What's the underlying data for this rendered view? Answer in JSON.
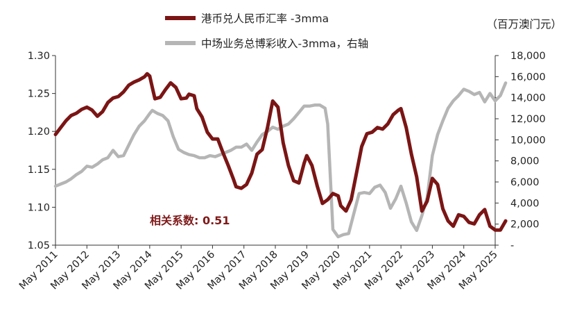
{
  "chart_data": {
    "type": "line",
    "title": "",
    "x_tick_labels": [
      "May 2011",
      "May 2012",
      "May 2013",
      "May 2014",
      "May 2015",
      "May 2016",
      "May 2017",
      "May 2018",
      "May 2019",
      "May 2020",
      "May 2021",
      "May 2022",
      "May 2023",
      "May 2024",
      "May 2025"
    ],
    "y_left": {
      "ylim": [
        1.05,
        1.3
      ],
      "ticks": [
        "1.05",
        "1.10",
        "1.15",
        "1.20",
        "1.25",
        "1.30"
      ]
    },
    "y_right": {
      "ylim": [
        0,
        18000
      ],
      "ticks": [
        "-",
        "2,000",
        "4,000",
        "6,000",
        "8,000",
        "10,000",
        "12,000",
        "14,000",
        "16,000",
        "18,000"
      ],
      "unit_label": "（百万澳门元）"
    },
    "annotation": "相关系数: 0.51",
    "legend_position": "top",
    "series": [
      {
        "name": "港币兑人民币汇率 -3mma",
        "axis": "left",
        "color": "#7b1515",
        "points": [
          [
            "2011-05",
            1.196
          ],
          [
            "2011-07",
            1.205
          ],
          [
            "2011-09",
            1.214
          ],
          [
            "2011-11",
            1.221
          ],
          [
            "2012-01",
            1.224
          ],
          [
            "2012-03",
            1.229
          ],
          [
            "2012-05",
            1.232
          ],
          [
            "2012-07",
            1.228
          ],
          [
            "2012-09",
            1.22
          ],
          [
            "2012-11",
            1.226
          ],
          [
            "2013-01",
            1.238
          ],
          [
            "2013-03",
            1.244
          ],
          [
            "2013-05",
            1.246
          ],
          [
            "2013-07",
            1.252
          ],
          [
            "2013-09",
            1.261
          ],
          [
            "2013-11",
            1.265
          ],
          [
            "2014-01",
            1.268
          ],
          [
            "2014-03",
            1.272
          ],
          [
            "2014-04",
            1.276
          ],
          [
            "2014-05",
            1.273
          ],
          [
            "2014-06",
            1.258
          ],
          [
            "2014-07",
            1.243
          ],
          [
            "2014-09",
            1.245
          ],
          [
            "2014-11",
            1.255
          ],
          [
            "2015-01",
            1.264
          ],
          [
            "2015-03",
            1.258
          ],
          [
            "2015-05",
            1.243
          ],
          [
            "2015-07",
            1.244
          ],
          [
            "2015-08",
            1.249
          ],
          [
            "2015-10",
            1.247
          ],
          [
            "2015-11",
            1.23
          ],
          [
            "2016-01",
            1.219
          ],
          [
            "2016-03",
            1.199
          ],
          [
            "2016-05",
            1.19
          ],
          [
            "2016-07",
            1.19
          ],
          [
            "2016-09",
            1.172
          ],
          [
            "2016-11",
            1.155
          ],
          [
            "2017-01",
            1.137
          ],
          [
            "2017-02",
            1.127
          ],
          [
            "2017-04",
            1.125
          ],
          [
            "2017-06",
            1.13
          ],
          [
            "2017-08",
            1.145
          ],
          [
            "2017-10",
            1.17
          ],
          [
            "2017-12",
            1.176
          ],
          [
            "2018-02",
            1.205
          ],
          [
            "2018-04",
            1.24
          ],
          [
            "2018-06",
            1.232
          ],
          [
            "2018-08",
            1.185
          ],
          [
            "2018-10",
            1.155
          ],
          [
            "2018-12",
            1.135
          ],
          [
            "2019-02",
            1.132
          ],
          [
            "2019-04",
            1.158
          ],
          [
            "2019-05",
            1.168
          ],
          [
            "2019-07",
            1.155
          ],
          [
            "2019-09",
            1.128
          ],
          [
            "2019-11",
            1.105
          ],
          [
            "2020-01",
            1.11
          ],
          [
            "2020-03",
            1.118
          ],
          [
            "2020-05",
            1.115
          ],
          [
            "2020-06",
            1.102
          ],
          [
            "2020-08",
            1.095
          ],
          [
            "2020-10",
            1.11
          ],
          [
            "2020-12",
            1.145
          ],
          [
            "2021-02",
            1.18
          ],
          [
            "2021-04",
            1.197
          ],
          [
            "2021-06",
            1.199
          ],
          [
            "2021-08",
            1.205
          ],
          [
            "2021-10",
            1.203
          ],
          [
            "2021-12",
            1.21
          ],
          [
            "2022-02",
            1.222
          ],
          [
            "2022-04",
            1.228
          ],
          [
            "2022-05",
            1.23
          ],
          [
            "2022-07",
            1.205
          ],
          [
            "2022-09",
            1.17
          ],
          [
            "2022-11",
            1.14
          ],
          [
            "2023-01",
            1.095
          ],
          [
            "2023-03",
            1.108
          ],
          [
            "2023-05",
            1.138
          ],
          [
            "2023-07",
            1.13
          ],
          [
            "2023-09",
            1.098
          ],
          [
            "2023-11",
            1.082
          ],
          [
            "2024-01",
            1.075
          ],
          [
            "2024-03",
            1.09
          ],
          [
            "2024-05",
            1.088
          ],
          [
            "2024-07",
            1.08
          ],
          [
            "2024-09",
            1.078
          ],
          [
            "2024-11",
            1.09
          ],
          [
            "2025-01",
            1.097
          ],
          [
            "2025-03",
            1.075
          ],
          [
            "2025-05",
            1.07
          ],
          [
            "2025-07",
            1.07
          ],
          [
            "2025-09",
            1.082
          ]
        ]
      },
      {
        "name": "中场业务总博彩收入-3mma，右轴",
        "axis": "right",
        "color": "#b5b5b5",
        "points": [
          [
            "2011-05",
            5600
          ],
          [
            "2011-07",
            5800
          ],
          [
            "2011-09",
            6000
          ],
          [
            "2011-11",
            6300
          ],
          [
            "2012-01",
            6700
          ],
          [
            "2012-03",
            7000
          ],
          [
            "2012-05",
            7500
          ],
          [
            "2012-07",
            7400
          ],
          [
            "2012-09",
            7700
          ],
          [
            "2012-11",
            8100
          ],
          [
            "2013-01",
            8300
          ],
          [
            "2013-03",
            9000
          ],
          [
            "2013-05",
            8400
          ],
          [
            "2013-07",
            8500
          ],
          [
            "2013-09",
            9500
          ],
          [
            "2013-11",
            10500
          ],
          [
            "2014-01",
            11300
          ],
          [
            "2014-03",
            11800
          ],
          [
            "2014-05",
            12500
          ],
          [
            "2014-06",
            12800
          ],
          [
            "2014-08",
            12500
          ],
          [
            "2014-10",
            12300
          ],
          [
            "2014-12",
            11800
          ],
          [
            "2015-02",
            10300
          ],
          [
            "2015-04",
            9100
          ],
          [
            "2015-06",
            8800
          ],
          [
            "2015-08",
            8600
          ],
          [
            "2015-10",
            8500
          ],
          [
            "2015-12",
            8300
          ],
          [
            "2016-02",
            8300
          ],
          [
            "2016-04",
            8500
          ],
          [
            "2016-06",
            8400
          ],
          [
            "2016-08",
            8600
          ],
          [
            "2016-10",
            8800
          ],
          [
            "2016-12",
            9000
          ],
          [
            "2017-02",
            9300
          ],
          [
            "2017-04",
            9300
          ],
          [
            "2017-06",
            9600
          ],
          [
            "2017-08",
            9000
          ],
          [
            "2017-10",
            9800
          ],
          [
            "2017-12",
            10500
          ],
          [
            "2018-02",
            10800
          ],
          [
            "2018-04",
            11200
          ],
          [
            "2018-06",
            11000
          ],
          [
            "2018-08",
            11300
          ],
          [
            "2018-10",
            11500
          ],
          [
            "2018-12",
            12000
          ],
          [
            "2019-02",
            12600
          ],
          [
            "2019-04",
            13200
          ],
          [
            "2019-06",
            13200
          ],
          [
            "2019-08",
            13300
          ],
          [
            "2019-10",
            13300
          ],
          [
            "2019-12",
            13000
          ],
          [
            "2020-01",
            11500
          ],
          [
            "2020-02",
            6500
          ],
          [
            "2020-03",
            1500
          ],
          [
            "2020-05",
            800
          ],
          [
            "2020-07",
            1000
          ],
          [
            "2020-09",
            1100
          ],
          [
            "2020-11",
            3000
          ],
          [
            "2021-01",
            4900
          ],
          [
            "2021-03",
            5000
          ],
          [
            "2021-05",
            4900
          ],
          [
            "2021-07",
            5500
          ],
          [
            "2021-09",
            5700
          ],
          [
            "2021-11",
            5000
          ],
          [
            "2022-01",
            3500
          ],
          [
            "2022-03",
            4400
          ],
          [
            "2022-05",
            5600
          ],
          [
            "2022-07",
            4000
          ],
          [
            "2022-09",
            2200
          ],
          [
            "2022-11",
            1400
          ],
          [
            "2023-01",
            2800
          ],
          [
            "2023-03",
            4500
          ],
          [
            "2023-05",
            8500
          ],
          [
            "2023-07",
            10500
          ],
          [
            "2023-09",
            11800
          ],
          [
            "2023-11",
            13000
          ],
          [
            "2024-01",
            13700
          ],
          [
            "2024-03",
            14200
          ],
          [
            "2024-05",
            14800
          ],
          [
            "2024-07",
            14600
          ],
          [
            "2024-09",
            14300
          ],
          [
            "2024-11",
            14500
          ],
          [
            "2025-01",
            13600
          ],
          [
            "2025-03",
            14400
          ],
          [
            "2025-05",
            13700
          ],
          [
            "2025-07",
            14200
          ],
          [
            "2025-09",
            15400
          ]
        ]
      }
    ]
  }
}
